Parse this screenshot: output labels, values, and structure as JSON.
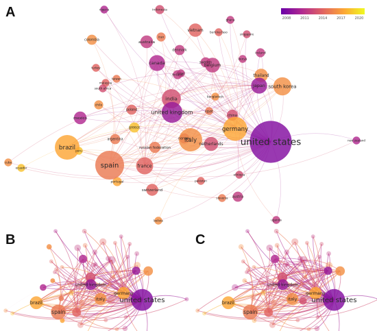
{
  "panels": {
    "a": {
      "letter": "A"
    },
    "b": {
      "letter": "B"
    },
    "c": {
      "letter": "C"
    }
  },
  "legend": {
    "colors": [
      "#6a00a8",
      "#b12a90",
      "#e16462",
      "#fca636",
      "#f0f921"
    ],
    "ticks": [
      "2008",
      "2011",
      "2014",
      "2017",
      "2020"
    ]
  },
  "network": {
    "nodes": [
      {
        "id": "united states",
        "year": 2009,
        "weight": 100
      },
      {
        "id": "spain",
        "year": 2015,
        "weight": 45
      },
      {
        "id": "brazil",
        "year": 2017,
        "weight": 32
      },
      {
        "id": "italy",
        "year": 2016,
        "weight": 28
      },
      {
        "id": "germany",
        "year": 2017,
        "weight": 30
      },
      {
        "id": "united kingdom",
        "year": 2010,
        "weight": 22
      },
      {
        "id": "india",
        "year": 2013,
        "weight": 18
      },
      {
        "id": "south korea",
        "year": 2016,
        "weight": 16
      },
      {
        "id": "france",
        "year": 2014,
        "weight": 14
      },
      {
        "id": "canada",
        "year": 2011,
        "weight": 12
      },
      {
        "id": "japan",
        "year": 2010,
        "weight": 12
      },
      {
        "id": "belgium",
        "year": 2012,
        "weight": 10
      },
      {
        "id": "netherlands",
        "year": 2013,
        "weight": 9
      },
      {
        "id": "vietnam",
        "year": 2014,
        "weight": 8
      },
      {
        "id": "thailand",
        "year": 2016,
        "weight": 8
      },
      {
        "id": "mexico",
        "year": 2011,
        "weight": 7
      },
      {
        "id": "australia",
        "year": 2012,
        "weight": 7
      },
      {
        "id": "switzerland",
        "year": 2014,
        "weight": 6
      },
      {
        "id": "russian federation",
        "year": 2015,
        "weight": 5
      },
      {
        "id": "argentina",
        "year": 2015,
        "weight": 4
      },
      {
        "id": "colombia",
        "year": 2016,
        "weight": 4
      },
      {
        "id": "poland",
        "year": 2014,
        "weight": 4
      },
      {
        "id": "greece",
        "year": 2018,
        "weight": 4
      },
      {
        "id": "norway",
        "year": 2013,
        "weight": 4
      },
      {
        "id": "denmark",
        "year": 2012,
        "weight": 4
      },
      {
        "id": "sweden",
        "year": 2012,
        "weight": 4
      },
      {
        "id": "chile",
        "year": 2016,
        "weight": 3
      },
      {
        "id": "portugal",
        "year": 2017,
        "weight": 3
      },
      {
        "id": "austria",
        "year": 2012,
        "weight": 4
      },
      {
        "id": "indonesia",
        "year": 2013,
        "weight": 3
      },
      {
        "id": "iran",
        "year": 2015,
        "weight": 3
      },
      {
        "id": "china",
        "year": 2013,
        "weight": 5
      },
      {
        "id": "finland",
        "year": 2012,
        "weight": 3
      },
      {
        "id": "ecuador",
        "year": 2018,
        "weight": 2
      },
      {
        "id": "peru",
        "year": 2018,
        "weight": 2
      },
      {
        "id": "cuba",
        "year": 2016,
        "weight": 2
      },
      {
        "id": "new zealand",
        "year": 2011,
        "weight": 2
      },
      {
        "id": "uganda",
        "year": 2012,
        "weight": 2
      },
      {
        "id": "slovenia",
        "year": 2015,
        "weight": 2
      },
      {
        "id": "bangladesh",
        "year": 2016,
        "weight": 2
      },
      {
        "id": "malaysia",
        "year": 2014,
        "weight": 2
      },
      {
        "id": "taiwan",
        "year": 2015,
        "weight": 2
      },
      {
        "id": "pakistan",
        "year": 2014,
        "weight": 2
      },
      {
        "id": "ethiopia",
        "year": 2013,
        "weight": 2
      },
      {
        "id": "kenya",
        "year": 2012,
        "weight": 2
      },
      {
        "id": "bolivia",
        "year": 2016,
        "weight": 2
      },
      {
        "id": "turkey",
        "year": 2014,
        "weight": 2
      },
      {
        "id": "south africa",
        "year": 2013,
        "weight": 2
      },
      {
        "id": "egypt",
        "year": 2015,
        "weight": 2
      },
      {
        "id": "ghana",
        "year": 2012,
        "weight": 2
      },
      {
        "id": "nigeria",
        "year": 2011,
        "weight": 2
      },
      {
        "id": "ireland",
        "year": 2012,
        "weight": 3
      },
      {
        "id": "israel",
        "year": 2012,
        "weight": 2
      },
      {
        "id": "burkina faso",
        "year": 2014,
        "weight": 2
      },
      {
        "id": "singapore",
        "year": 2013,
        "weight": 2
      }
    ]
  }
}
